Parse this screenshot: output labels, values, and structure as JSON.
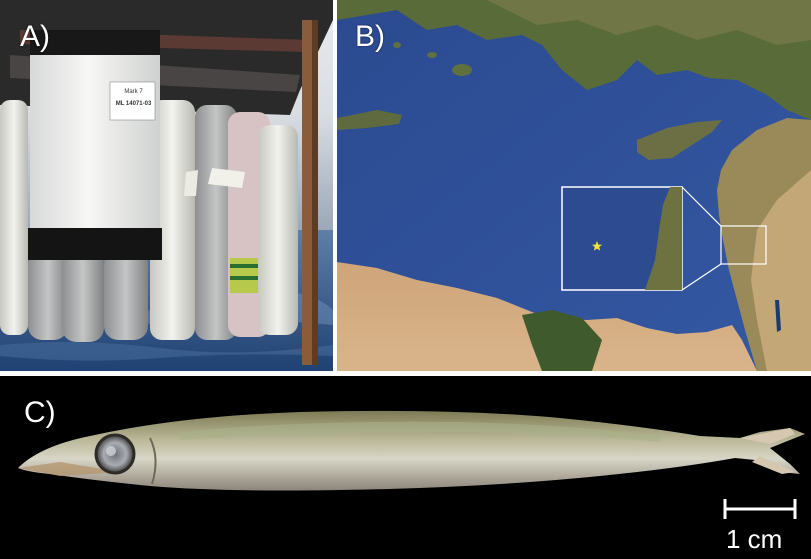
{
  "panels": {
    "a": {
      "label": "A)",
      "sampler": {
        "label_line1": "Mark 7",
        "label_line2": "ML 14071-03"
      }
    },
    "b": {
      "label": "B)"
    },
    "c": {
      "label": "C)",
      "scale_bar": "1 cm"
    }
  },
  "colors": {
    "sea": "#2f4f9a",
    "land": "#c9a877",
    "marker": "#f5e431",
    "inset_frame": "#ffffff",
    "background_c": "#000000"
  }
}
